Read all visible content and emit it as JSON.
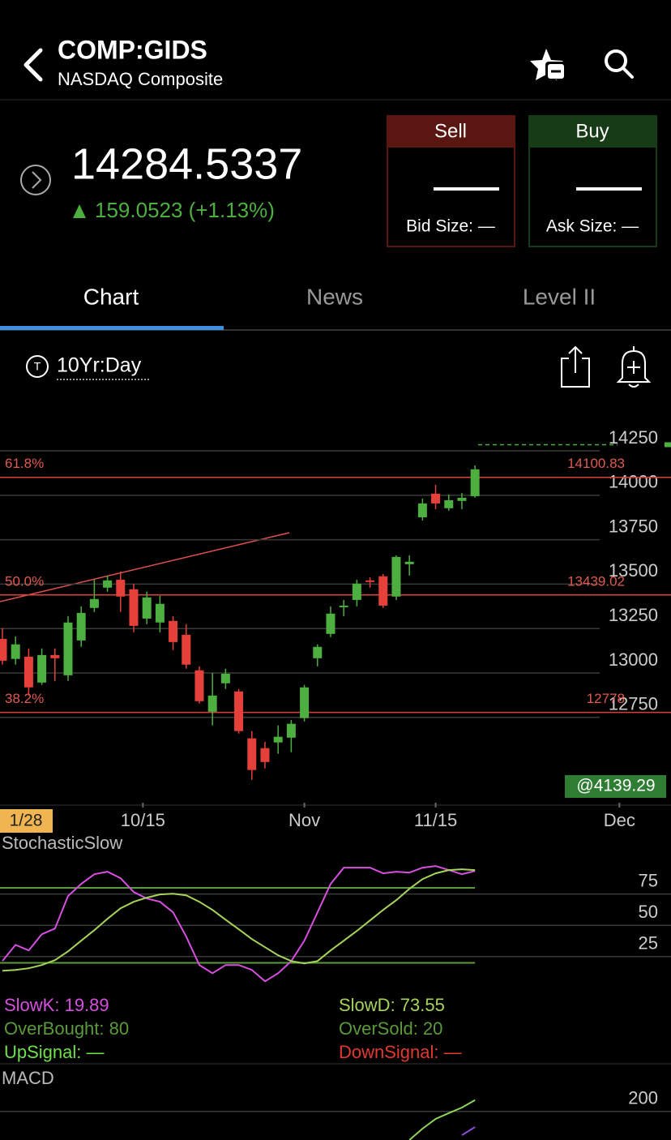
{
  "header": {
    "symbol": "COMP:GIDS",
    "name": "NASDAQ Composite"
  },
  "quote": {
    "price": 14284.5337,
    "change": "159.0523 (+1.13%)"
  },
  "sell": {
    "label": "Sell",
    "size_label": "Bid Size: —"
  },
  "buy": {
    "label": "Buy",
    "size_label": "Ask Size: —"
  },
  "tabs": [
    "Chart",
    "News",
    "Level II"
  ],
  "chart_range": "10Yr:Day",
  "chart_data": [
    {
      "type": "candlestick",
      "up_color": "#4caf3f",
      "down_color": "#e5413a",
      "open": [
        13192,
        13079,
        13092,
        12946,
        13101,
        12987,
        13183,
        13366,
        13480,
        13525,
        13471,
        13306,
        13284,
        13293,
        13215,
        13015,
        12782,
        12942,
        12896,
        12632,
        12577,
        12609,
        12636,
        12746,
        13083,
        13220,
        13370,
        13411,
        13521,
        13544,
        13430,
        13612,
        13876,
        14009,
        13927,
        13968,
        13995
      ],
      "high": [
        13252,
        13206,
        13138,
        13138,
        13138,
        13320,
        13375,
        13525,
        13548,
        13571,
        13503,
        13457,
        13434,
        13320,
        13275,
        13037,
        13001,
        13024,
        12910,
        12673,
        12613,
        12705,
        12736,
        12933,
        13161,
        13375,
        13411,
        13525,
        13539,
        13557,
        13662,
        13662,
        13981,
        14059,
        14004,
        14013,
        14168
      ],
      "low": [
        13047,
        13047,
        12873,
        12933,
        12955,
        12955,
        13147,
        13343,
        13457,
        13343,
        13229,
        13275,
        13229,
        13129,
        13024,
        12828,
        12705,
        12910,
        12659,
        12399,
        12463,
        12545,
        12554,
        12727,
        13037,
        13202,
        13320,
        13375,
        13480,
        13366,
        13411,
        13548,
        13858,
        13922,
        13913,
        13922,
        13986
      ],
      "close": [
        13069,
        13161,
        12919,
        13101,
        13083,
        13284,
        13338,
        13416,
        13521,
        13430,
        13265,
        13425,
        13389,
        13174,
        13047,
        12841,
        12873,
        12996,
        12673,
        12454,
        12499,
        12641,
        12714,
        12919,
        13147,
        13334,
        13379,
        13503,
        13512,
        13379,
        13653,
        13626,
        13954,
        13954,
        13972,
        13986,
        14146
      ],
      "xlim": [
        -0.185,
        50.93
      ],
      "xticks": [
        {
          "value": 10.7,
          "label": "10/15"
        },
        {
          "value": 23,
          "label": "Nov"
        },
        {
          "value": 33,
          "label": "11/15"
        },
        {
          "value": 47,
          "label": "Dec"
        }
      ],
      "ylim": [
        12270,
        14460
      ],
      "yticks": [
        12750,
        13000,
        13250,
        13500,
        13750,
        14000,
        14250
      ],
      "levels": [
        {
          "label": "61.8%",
          "value": 14100.83
        },
        {
          "label": "50.0%",
          "value": 13439.02
        },
        {
          "label": "38.2%",
          "value": 12778
        }
      ],
      "cursor_label": "@4139.29",
      "cursor_date": "1/28"
    },
    {
      "type": "line",
      "title": "StochasticSlow",
      "xlim": [
        -0.185,
        50.93
      ],
      "ylim": [
        -5,
        115
      ],
      "yticks": [
        25,
        50,
        75
      ],
      "series": [
        {
          "name": "SlowK",
          "color": "#d64fe0",
          "values": [
            21.4,
            34.4,
            29.9,
            42.9,
            47.4,
            73.4,
            83.1,
            90.9,
            92.9,
            87.7,
            76.6,
            71.4,
            68.8,
            60.4,
            40.9,
            18.2,
            11.7,
            18.2,
            18.2,
            14.3,
            5.2,
            11.7,
            21.4,
            37.7,
            60.4,
            83.1,
            96.1,
            96.1,
            96.1,
            91.6,
            92.9,
            92.2,
            96.1,
            97.4,
            94.2,
            90.9,
            93.5
          ]
        },
        {
          "name": "SlowD",
          "color": "#a6d45a",
          "values": [
            13.6,
            14.3,
            15.6,
            18.2,
            22.1,
            29.2,
            37.7,
            46.1,
            55.2,
            63.6,
            68.8,
            72.1,
            74.7,
            75.3,
            74.0,
            68.8,
            62.3,
            54.5,
            46.8,
            39.0,
            32.5,
            26.0,
            21.4,
            19.5,
            21.4,
            29.9,
            37.7,
            45.5,
            53.9,
            62.3,
            70.1,
            79.2,
            87.0,
            91.6,
            94.2,
            94.8,
            94.2
          ]
        }
      ],
      "levels": [
        {
          "value": 80,
          "color": "#5a9a3a"
        },
        {
          "value": 20,
          "color": "#5a9a3a"
        }
      ],
      "legend": [
        {
          "text": "SlowK: 19.89",
          "color": "#d64fe0"
        },
        {
          "text": "SlowD: 73.55",
          "color": "#a6d45a"
        },
        {
          "text": "OverBought: 80",
          "color": "#5a9a3a"
        },
        {
          "text": "OverSold: 20",
          "color": "#5a9a3a"
        },
        {
          "text": "UpSignal: —",
          "color": "#6fe04a"
        },
        {
          "text": "DownSignal: —",
          "color": "#e03a30"
        }
      ]
    },
    {
      "type": "line",
      "title": "MACD",
      "xlim": [
        -0.185,
        50.93
      ],
      "ylim": [
        112,
        327
      ],
      "yticks": [
        200
      ],
      "series": [
        {
          "color": "#8fd45a",
          "values": [
            null,
            null,
            null,
            null,
            null,
            null,
            null,
            null,
            null,
            null,
            null,
            null,
            null,
            null,
            null,
            null,
            null,
            null,
            null,
            null,
            null,
            null,
            null,
            null,
            null,
            null,
            null,
            null,
            null,
            null,
            null,
            112,
            147,
            177,
            195,
            212,
            235
          ]
        },
        {
          "color": "#8b4fd8",
          "values": [
            null,
            null,
            null,
            null,
            null,
            null,
            null,
            null,
            null,
            null,
            null,
            null,
            null,
            null,
            null,
            null,
            null,
            null,
            null,
            null,
            null,
            null,
            null,
            null,
            null,
            null,
            null,
            null,
            null,
            null,
            null,
            null,
            null,
            null,
            null,
            127,
            152
          ]
        }
      ]
    }
  ]
}
